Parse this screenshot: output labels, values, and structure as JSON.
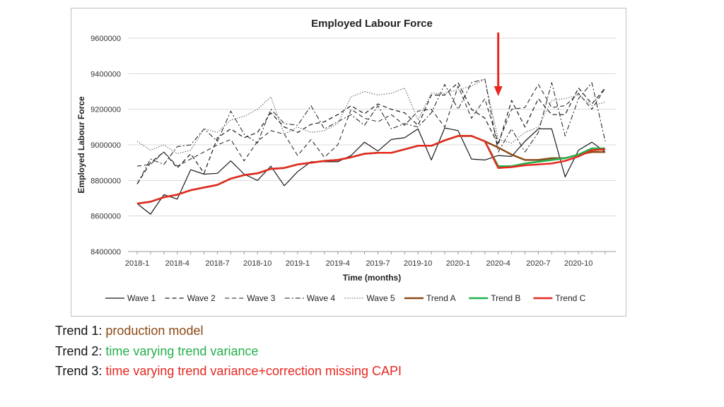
{
  "chart_data": {
    "type": "line",
    "title": "Employed Labour Force",
    "xlabel": "Time (months)",
    "ylabel": "Employed Labour Force",
    "ylim": [
      8400000,
      9600000
    ],
    "yticks": [
      "8400000",
      "8600000",
      "8800000",
      "9000000",
      "9200000",
      "9400000",
      "9600000"
    ],
    "xticks": [
      "2018-1",
      "2018-4",
      "2018-7",
      "2018-10",
      "2019-1",
      "2019-4",
      "2019-7",
      "2019-10",
      "2020-1",
      "2020-4",
      "2020-7",
      "2020-10"
    ],
    "x_start": "2018-1",
    "grid": true,
    "legend_position": "bottom",
    "annotation": {
      "type": "arrow",
      "color": "#e8271f",
      "x": "2020-4"
    },
    "series": [
      {
        "name": "Wave 1",
        "style": "solid",
        "color": "#1a1a1a",
        "width": 1.2,
        "values": [
          8670000,
          8610000,
          8720000,
          8695000,
          8860000,
          8835000,
          8840000,
          8910000,
          8835000,
          8800000,
          8880000,
          8770000,
          8850000,
          8905000,
          8905000,
          8905000,
          8940000,
          9015000,
          8965000,
          9030000,
          9040000,
          9090000,
          8915000,
          9095000,
          9080000,
          8920000,
          8915000,
          8940000,
          8935000,
          9020000,
          9090000,
          9090000,
          8820000,
          8970000,
          9015000,
          8960000
        ]
      },
      {
        "name": "Wave 2",
        "style": "dash",
        "color": "#1a1a1a",
        "width": 1.2,
        "values": [
          8780000,
          8900000,
          8960000,
          8870000,
          8950000,
          8840000,
          9040000,
          9090000,
          9040000,
          9070000,
          9180000,
          9100000,
          9070000,
          9115000,
          9130000,
          9170000,
          9220000,
          9175000,
          9230000,
          9200000,
          9180000,
          9110000,
          9280000,
          9280000,
          9350000,
          9200000,
          9150000,
          9000000,
          9250000,
          9100000,
          9260000,
          9170000,
          9170000,
          9320000,
          9230000,
          9320000
        ]
      },
      {
        "name": "Wave 3",
        "style": "dash",
        "color": "#1a1a1a",
        "width": 1.0,
        "values": [
          8880000,
          8890000,
          8960000,
          8880000,
          8920000,
          8960000,
          9000000,
          9030000,
          8910000,
          9020000,
          9080000,
          9060000,
          8940000,
          9030000,
          8930000,
          9000000,
          9200000,
          9150000,
          9130000,
          9170000,
          9110000,
          9190000,
          9200000,
          9100000,
          9330000,
          9150000,
          9260000,
          9010000,
          9200000,
          9210000,
          9340000,
          9210000,
          9220000,
          9290000,
          9200000,
          9320000
        ]
      },
      {
        "name": "Wave 4",
        "style": "dashdot",
        "color": "#1a1a1a",
        "width": 1.0,
        "values": [
          8780000,
          8920000,
          8890000,
          8990000,
          9000000,
          9090000,
          9020000,
          9190000,
          9060000,
          9010000,
          9200000,
          9120000,
          9110000,
          9220000,
          9090000,
          9130000,
          9170000,
          9110000,
          9220000,
          9090000,
          9120000,
          9100000,
          9180000,
          9340000,
          9200000,
          9350000,
          9370000,
          8960000,
          9090000,
          8960000,
          9070000,
          9350000,
          9050000,
          9260000,
          9350000,
          9020000
        ]
      },
      {
        "name": "Wave 5",
        "style": "dot",
        "color": "#555555",
        "width": 1.0,
        "values": [
          9020000,
          8970000,
          9000000,
          8950000,
          8970000,
          9090000,
          9070000,
          9140000,
          9160000,
          9200000,
          9270000,
          9060000,
          9100000,
          9070000,
          9080000,
          9120000,
          9270000,
          9300000,
          9280000,
          9290000,
          9320000,
          9140000,
          9290000,
          9290000,
          9310000,
          9330000,
          9370000,
          9030000,
          9010000,
          9070000,
          9100000,
          9250000,
          9260000,
          9280000,
          9220000,
          9240000
        ]
      },
      {
        "name": "Trend A",
        "style": "solid",
        "color": "#8b4a14",
        "width": 2.5,
        "values": [
          8670000,
          8680000,
          8705000,
          8720000,
          8745000,
          8760000,
          8775000,
          8810000,
          8830000,
          8840000,
          8865000,
          8870000,
          8890000,
          8900000,
          8910000,
          8915000,
          8930000,
          8950000,
          8955000,
          8955000,
          8975000,
          8995000,
          8995000,
          9025000,
          9050000,
          9050000,
          9020000,
          8985000,
          8945000,
          8915000,
          8915000,
          8925000,
          8925000,
          8945000,
          8960000,
          8960000
        ]
      },
      {
        "name": "Trend B",
        "style": "solid",
        "color": "#22b04b",
        "width": 2.5,
        "values": [
          8670000,
          8680000,
          8705000,
          8720000,
          8745000,
          8760000,
          8775000,
          8810000,
          8830000,
          8840000,
          8865000,
          8870000,
          8890000,
          8900000,
          8910000,
          8915000,
          8930000,
          8950000,
          8955000,
          8955000,
          8975000,
          8995000,
          8995000,
          9025000,
          9050000,
          9050000,
          9020000,
          8880000,
          8880000,
          8895000,
          8905000,
          8915000,
          8925000,
          8945000,
          8980000,
          8980000
        ]
      },
      {
        "name": "Trend C",
        "style": "solid",
        "color": "#e8271f",
        "width": 2.5,
        "values": [
          8670000,
          8680000,
          8705000,
          8720000,
          8745000,
          8760000,
          8775000,
          8810000,
          8830000,
          8840000,
          8865000,
          8870000,
          8890000,
          8900000,
          8910000,
          8915000,
          8930000,
          8950000,
          8955000,
          8955000,
          8975000,
          8995000,
          8995000,
          9025000,
          9050000,
          9050000,
          9020000,
          8870000,
          8875000,
          8885000,
          8890000,
          8895000,
          8910000,
          8935000,
          8970000,
          8975000
        ]
      }
    ]
  },
  "notes": [
    {
      "prefix": "Trend 1: ",
      "text": "production model",
      "color": "#8b4a14"
    },
    {
      "prefix": "Trend 2: ",
      "text": "time varying trend variance",
      "color": "#22b04b"
    },
    {
      "prefix": "Trend 3: ",
      "text": "time varying trend variance+correction missing CAPI",
      "color": "#e8271f"
    }
  ]
}
